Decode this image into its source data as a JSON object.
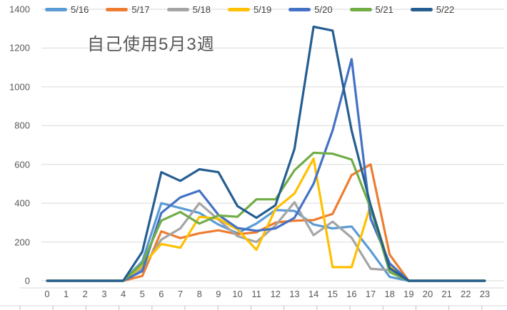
{
  "chart_data": {
    "type": "line",
    "title": "自己使用5月3週",
    "xlabel": "",
    "ylabel": "",
    "ylim": [
      0,
      1400
    ],
    "y_tick_step": 200,
    "y_tick_labels": [
      "0",
      "200",
      "400",
      "600",
      "800",
      "1000",
      "1200",
      "1400"
    ],
    "x_tick_labels": [
      "0",
      "1",
      "2",
      "3",
      "4",
      "5",
      "6",
      "7",
      "8",
      "9",
      "10",
      "11",
      "12",
      "13",
      "14",
      "15",
      "16",
      "17",
      "18",
      "19",
      "20",
      "21",
      "22",
      "23"
    ],
    "grid": "horizontal",
    "legend_position": "top",
    "series": [
      {
        "name": "5/16",
        "color": "#5B9BD5",
        "values": [
          0,
          0,
          0,
          0,
          0,
          100,
          400,
          375,
          350,
          290,
          245,
          295,
          365,
          360,
          290,
          270,
          280,
          155,
          20,
          0,
          0,
          0,
          0,
          0
        ]
      },
      {
        "name": "5/17",
        "color": "#ED7D31",
        "values": [
          0,
          0,
          0,
          0,
          0,
          25,
          255,
          220,
          245,
          260,
          240,
          250,
          300,
          310,
          313,
          345,
          545,
          600,
          135,
          0,
          0,
          0,
          0,
          0
        ]
      },
      {
        "name": "5/18",
        "color": "#A5A5A5",
        "values": [
          0,
          0,
          0,
          0,
          0,
          65,
          212,
          270,
          400,
          315,
          230,
          200,
          285,
          405,
          235,
          305,
          222,
          62,
          55,
          0,
          0,
          0,
          0,
          0
        ]
      },
      {
        "name": "5/19",
        "color": "#FFC000",
        "values": [
          0,
          0,
          0,
          0,
          0,
          80,
          190,
          170,
          330,
          320,
          265,
          160,
          370,
          450,
          630,
          70,
          70,
          390,
          75,
          0,
          0,
          0,
          0,
          0
        ]
      },
      {
        "name": "5/20",
        "color": "#4472C4",
        "values": [
          0,
          0,
          0,
          0,
          0,
          50,
          350,
          430,
          465,
          340,
          272,
          258,
          270,
          325,
          500,
          775,
          1143,
          320,
          90,
          0,
          0,
          0,
          0,
          0
        ]
      },
      {
        "name": "5/21",
        "color": "#70AD47",
        "values": [
          0,
          0,
          0,
          0,
          0,
          90,
          310,
          355,
          295,
          337,
          330,
          420,
          420,
          570,
          660,
          655,
          625,
          375,
          45,
          0,
          0,
          0,
          0,
          0
        ]
      },
      {
        "name": "5/22",
        "color": "#255E91",
        "values": [
          0,
          0,
          0,
          0,
          0,
          150,
          560,
          515,
          575,
          560,
          385,
          325,
          390,
          680,
          1310,
          1290,
          775,
          390,
          65,
          0,
          0,
          0,
          0,
          0
        ]
      }
    ]
  },
  "colors": {
    "gridline": "#D9D9D9",
    "axis_text": "#595959",
    "legend_text": "#404040",
    "title_text": "#595959",
    "sheet_line": "#D9D9D9",
    "sheet_tick": "#BFBFBF"
  }
}
